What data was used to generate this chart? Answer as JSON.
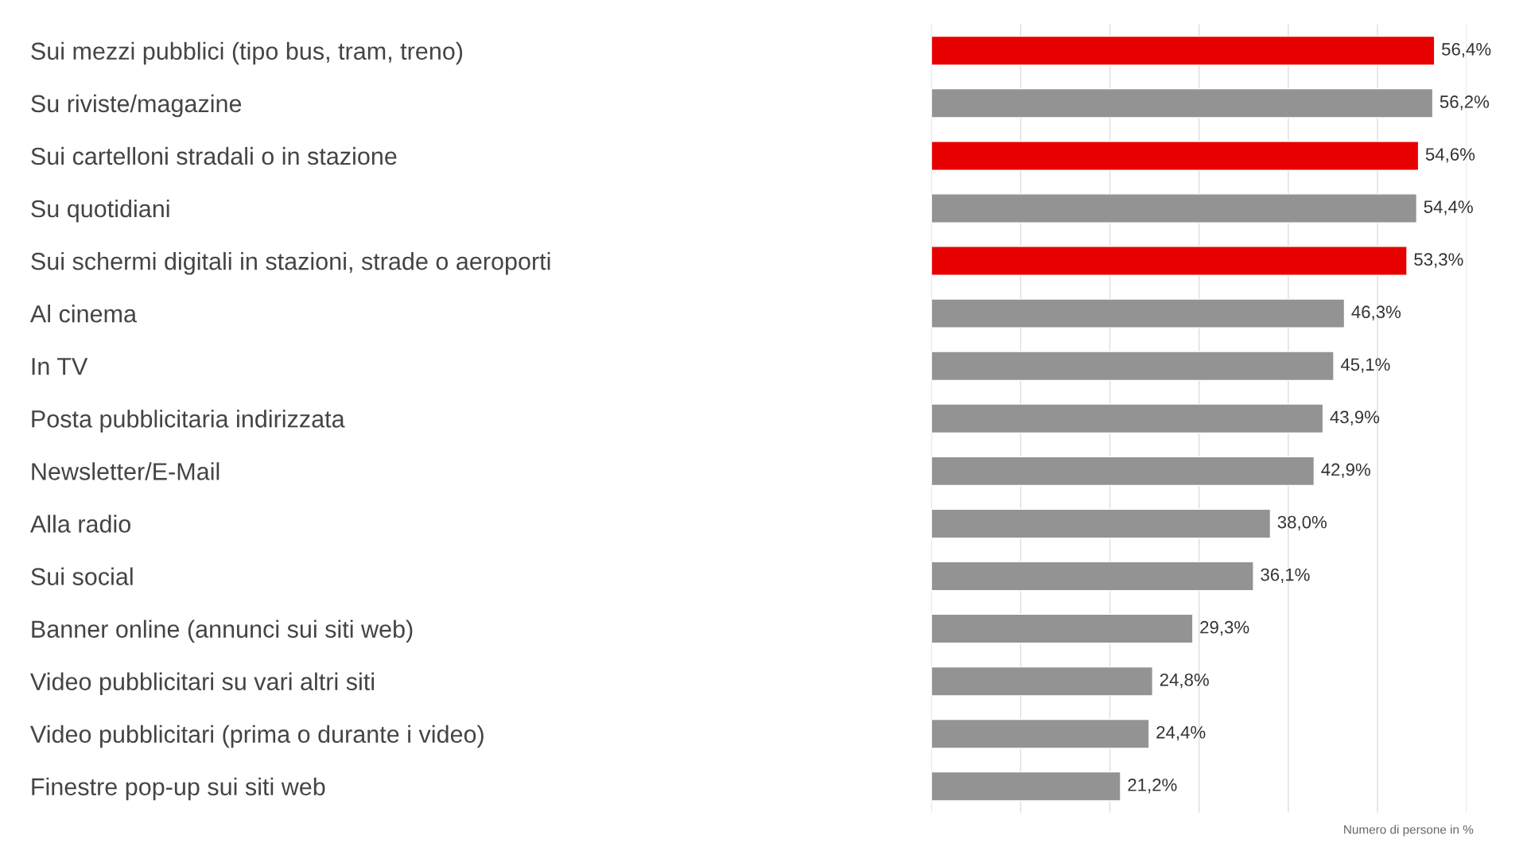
{
  "chart_data": {
    "type": "bar",
    "orientation": "horizontal",
    "categories": [
      "Sui mezzi pubblici (tipo bus, tram, treno)",
      "Su riviste/magazine",
      "Sui cartelloni stradali o in stazione",
      "Su quotidiani",
      "Sui schermi digitali in stazioni, strade o aeroporti",
      "Al cinema",
      "In TV",
      "Posta pubblicitaria indirizzata",
      "Newsletter/E-Mail",
      "Alla radio",
      "Sui social",
      "Banner online (annunci sui siti web)",
      "Video pubblicitari su vari altri siti",
      "Video pubblicitari (prima o durante i video)",
      "Finestre pop-up sui siti web"
    ],
    "values": [
      56.4,
      56.2,
      54.6,
      54.4,
      53.3,
      46.3,
      45.1,
      43.9,
      42.9,
      38.0,
      36.1,
      29.3,
      24.8,
      24.4,
      21.2
    ],
    "value_labels": [
      "56,4%",
      "56,2%",
      "54,6%",
      "54,4%",
      "53,3%",
      "46,3%",
      "45,1%",
      "43,9%",
      "42,9%",
      "38,0%",
      "36,1%",
      "29,3%",
      "24,8%",
      "24,4%",
      "21,2%"
    ],
    "colors": [
      "#e60000",
      "#939393",
      "#e60000",
      "#939393",
      "#e60000",
      "#939393",
      "#939393",
      "#939393",
      "#939393",
      "#939393",
      "#939393",
      "#939393",
      "#939393",
      "#939393",
      "#939393"
    ],
    "xlim": [
      0,
      60
    ],
    "xticks": [
      {
        "value": 0,
        "label": null
      },
      {
        "value": 10,
        "label": null
      },
      {
        "value": 20,
        "label": null
      },
      {
        "value": 30,
        "label": null
      },
      {
        "value": 40,
        "label": null
      },
      {
        "value": 50,
        "label": null
      },
      {
        "value": 60,
        "label": null
      }
    ],
    "grid": "x",
    "tick_labels": "y",
    "legend": false,
    "annotations": [
      "Numero di persone in %"
    ]
  }
}
